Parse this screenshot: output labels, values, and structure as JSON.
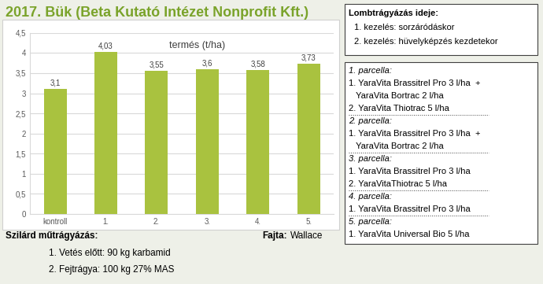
{
  "chart_data": {
    "type": "bar",
    "title": "termés (t/ha)",
    "categories": [
      "kontroll",
      "1.",
      "2.",
      "3.",
      "4.",
      "5."
    ],
    "values": [
      3.1,
      4.03,
      3.55,
      3.6,
      3.58,
      3.73
    ],
    "value_labels": [
      "3,1",
      "4,03",
      "3,55",
      "3,6",
      "3,58",
      "3,73"
    ],
    "color": "#a9c23f",
    "data_labels": true,
    "grid": true,
    "ylim": [
      0,
      4.5
    ],
    "yticks": [
      0,
      {
        "value": 0.5,
        "label": "0,5"
      },
      1,
      {
        "value": 1.5,
        "label": "1,5"
      },
      2,
      {
        "value": 2.5,
        "label": "2,5"
      },
      3,
      {
        "value": 3.5,
        "label": "3,5"
      },
      4,
      {
        "value": 4.5,
        "label": "4,5"
      }
    ]
  },
  "page": {
    "title": "2017. Bük (Beta Kutató Intézet Nonprofit Kft.)",
    "treatment_time": {
      "heading": "Lombtrágyázás ideje:",
      "lines": [
        "1. kezelés: sorzáródáskor",
        "2. kezelés: hüvelyképzés kezdetekor"
      ]
    },
    "plots": [
      {
        "heading": "1. parcella:",
        "lines": [
          "1. YaraVita Brassitrel Pro 3 l/ha  +",
          "YaraVita Bortrac 2 l/ha",
          "2. YaraVita Thiotrac 5 l/ha"
        ]
      },
      {
        "heading": "2. parcella:",
        "lines": [
          "1. YaraVita Brassitrel Pro 3 l/ha  +",
          "YaraVita Bortrac 2 l/ha"
        ]
      },
      {
        "heading": "3. parcella:",
        "lines": [
          "1. YaraVita Brassitrel Pro 3 l/ha",
          "2. YaraVitaThiotrac 5 l/ha"
        ]
      },
      {
        "heading": "4. parcella:",
        "lines": [
          "1. YaraVita Brassitrel Pro 3 l/ha"
        ]
      },
      {
        "heading": "5. parcella:",
        "lines": [
          "1. YaraVita Universal Bio 5 l/ha"
        ]
      }
    ],
    "fertilization": {
      "heading": "Szilárd műtrágyázás:",
      "lines": [
        "1. Vetés előtt: 90 kg karbamid",
        "2. Fejtrágya: 100 kg 27% MAS"
      ]
    },
    "variety": {
      "label": "Fajta:",
      "value": "Wallace"
    }
  }
}
